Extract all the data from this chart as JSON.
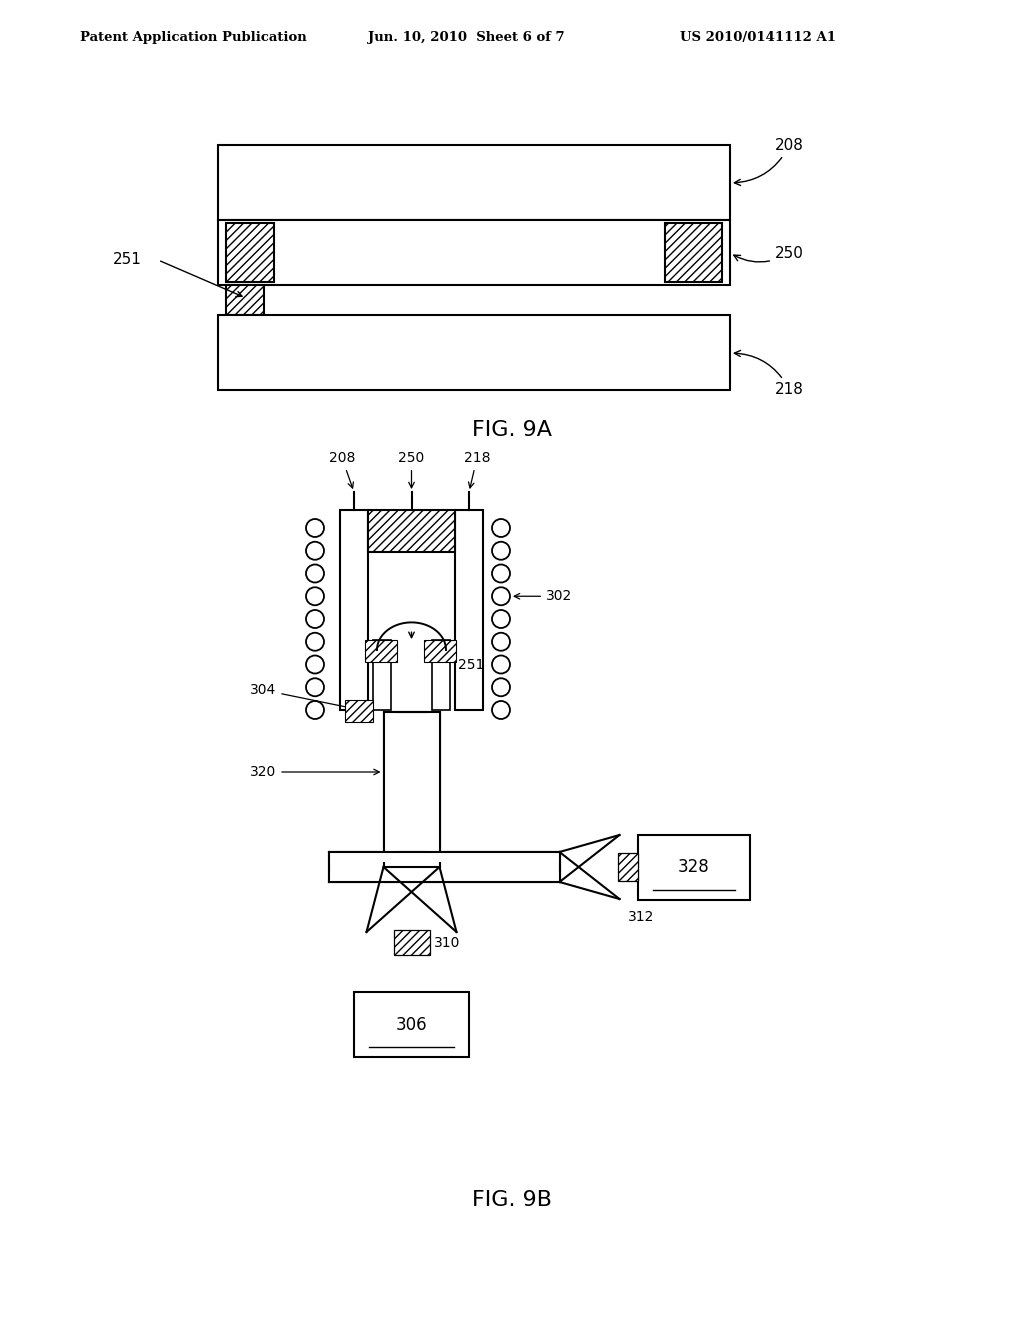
{
  "bg": "#ffffff",
  "header_left": "Patent Application Publication",
  "header_mid": "Jun. 10, 2010  Sheet 6 of 7",
  "header_right": "US 2010/0141112 A1",
  "cap9a": "FIG. 9A",
  "cap9b": "FIG. 9B",
  "lw": 1.5
}
